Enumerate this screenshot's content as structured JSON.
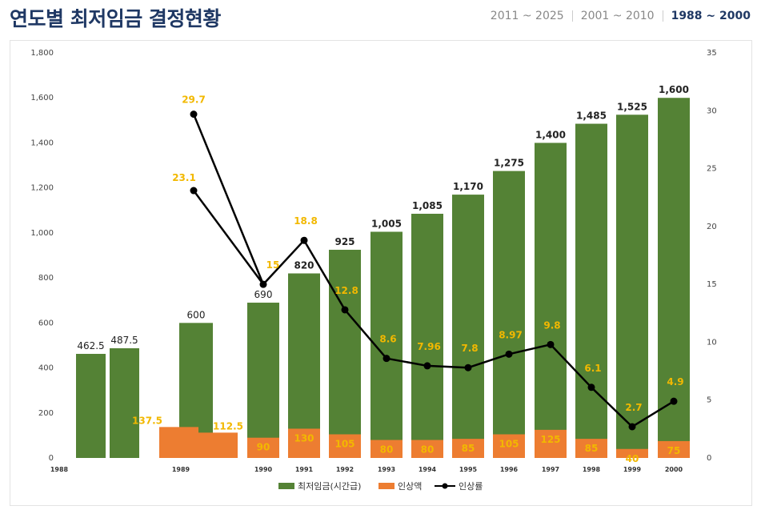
{
  "title": "연도별 최저임금 결정현황",
  "tabs": [
    {
      "label": "2011 ~ 2025",
      "active": false
    },
    {
      "label": "2001 ~ 2010",
      "active": false
    },
    {
      "label": "1988 ~ 2000",
      "active": true
    }
  ],
  "colors": {
    "wage": "#548235",
    "raise": "#ed7d31",
    "rate_line": "#000000",
    "rate_label": "#f2b800"
  },
  "chart_data": {
    "type": "bar",
    "categories": [
      "1988",
      "1989",
      "1990",
      "1991",
      "1992",
      "1993",
      "1994",
      "1995",
      "1996",
      "1997",
      "1998",
      "1999",
      "2000"
    ],
    "series": [
      {
        "name": "최저임금(시간급)",
        "type": "bar",
        "axis": "left",
        "values": [
          [
            462.5,
            487.5
          ],
          [
            600
          ],
          [
            690
          ],
          [
            820
          ],
          [
            925
          ],
          [
            1005
          ],
          [
            1085
          ],
          [
            1170
          ],
          [
            1275
          ],
          [
            1400
          ],
          [
            1485
          ],
          [
            1525
          ],
          [
            1600
          ]
        ],
        "labels": [
          [
            "462.5",
            "487.5"
          ],
          [
            "600"
          ],
          [
            "690"
          ],
          [
            "820"
          ],
          [
            "925"
          ],
          [
            "1,005"
          ],
          [
            "1,085"
          ],
          [
            "1,170"
          ],
          [
            "1,275"
          ],
          [
            "1,400"
          ],
          [
            "1,485"
          ],
          [
            "1,525"
          ],
          [
            "1,600"
          ]
        ]
      },
      {
        "name": "인상액",
        "type": "bar",
        "axis": "left",
        "values": [
          [],
          [
            137.5,
            112.5
          ],
          [
            90
          ],
          [
            130
          ],
          [
            105
          ],
          [
            80
          ],
          [
            80
          ],
          [
            85
          ],
          [
            105
          ],
          [
            125
          ],
          [
            85
          ],
          [
            40
          ],
          [
            75
          ]
        ],
        "labels": [
          [],
          [
            "137.5",
            "112.5"
          ],
          [
            "90"
          ],
          [
            "130"
          ],
          [
            "105"
          ],
          [
            "80"
          ],
          [
            "80"
          ],
          [
            "85"
          ],
          [
            "105"
          ],
          [
            "125"
          ],
          [
            "85"
          ],
          [
            "40"
          ],
          [
            "75"
          ]
        ]
      },
      {
        "name": "인상률",
        "type": "line",
        "axis": "right",
        "points": [
          {
            "x": "1989",
            "y": 29.7,
            "label": "29.7"
          },
          {
            "x": "1989",
            "y": 23.1,
            "label": "23.1"
          },
          {
            "x": "1990",
            "y": 15,
            "label": "15"
          },
          {
            "x": "1991",
            "y": 18.8,
            "label": "18.8"
          },
          {
            "x": "1992",
            "y": 12.8,
            "label": "12.8"
          },
          {
            "x": "1993",
            "y": 8.6,
            "label": "8.6"
          },
          {
            "x": "1994",
            "y": 7.96,
            "label": "7.96"
          },
          {
            "x": "1995",
            "y": 7.8,
            "label": "7.8"
          },
          {
            "x": "1996",
            "y": 8.97,
            "label": "8.97"
          },
          {
            "x": "1997",
            "y": 9.8,
            "label": "9.8"
          },
          {
            "x": "1998",
            "y": 6.1,
            "label": "6.1"
          },
          {
            "x": "1999",
            "y": 2.7,
            "label": "2.7"
          },
          {
            "x": "2000",
            "y": 4.9,
            "label": "4.9"
          }
        ],
        "path_order": [
          1,
          2,
          0,
          2,
          3,
          4,
          5,
          6,
          7,
          8,
          9,
          10,
          11,
          12
        ]
      }
    ],
    "y_left": {
      "min": 0,
      "max": 1800,
      "ticks": [
        "0",
        "200",
        "400",
        "600",
        "800",
        "1,000",
        "1,200",
        "1,400",
        "1,600",
        "1,800"
      ]
    },
    "y_right": {
      "min": 0,
      "max": 35,
      "ticks": [
        "0",
        "5",
        "10",
        "15",
        "20",
        "25",
        "30",
        "35"
      ]
    },
    "legend": [
      "최저임금(시간급)",
      "인상액",
      "인상률"
    ],
    "legend_position": "bottom",
    "grid": false
  }
}
